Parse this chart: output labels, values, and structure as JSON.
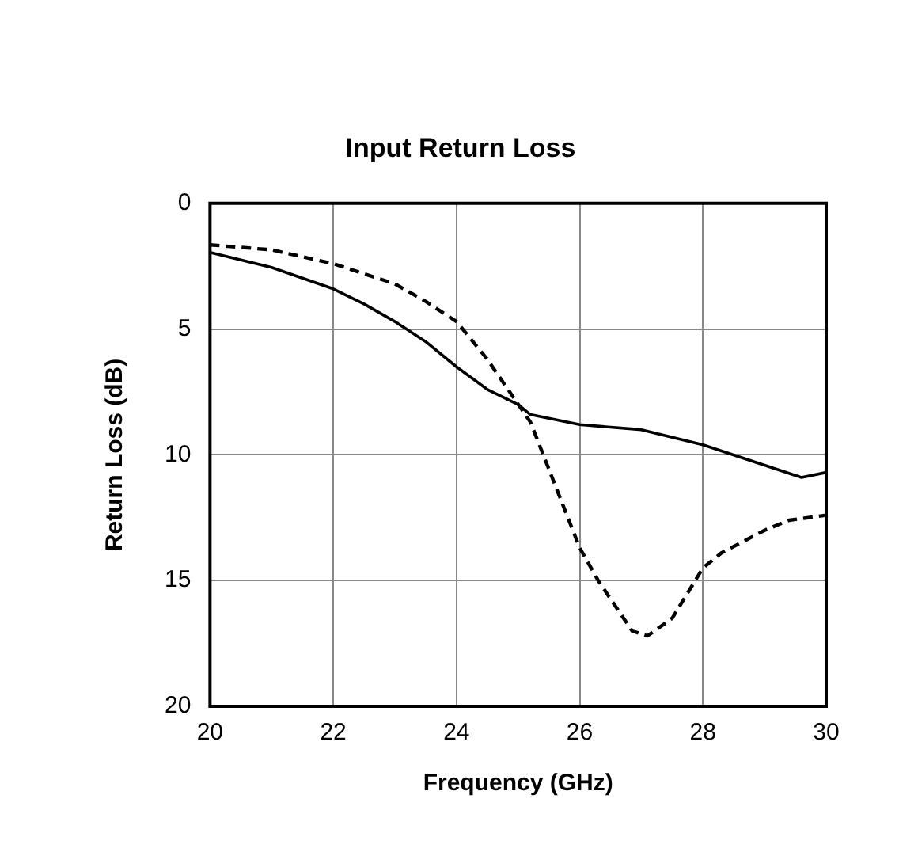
{
  "chart_data": {
    "type": "line",
    "title": "Input Return Loss",
    "xlabel": "Frequency (GHz)",
    "ylabel": "Return Loss (dB)",
    "xlim": [
      20,
      30
    ],
    "xticks": [
      20,
      22,
      24,
      26,
      28,
      30
    ],
    "ylim": [
      20,
      0
    ],
    "yticks": [
      0,
      5,
      10,
      15,
      20
    ],
    "grid": true,
    "legend": false,
    "marker": "none",
    "series": [
      {
        "color": "#000000",
        "line_style": "solid",
        "x": [
          20,
          21,
          22,
          22.5,
          23,
          23.5,
          24,
          24.5,
          25,
          25.2,
          26,
          27,
          28,
          29.6,
          30
        ],
        "values": [
          1.95,
          2.55,
          3.4,
          4.0,
          4.7,
          5.5,
          6.5,
          7.4,
          8.0,
          8.4,
          8.8,
          9.0,
          9.6,
          10.9,
          10.7
        ]
      },
      {
        "color": "#000000",
        "line_style": "dashed",
        "x": [
          20,
          21,
          22,
          23,
          23.5,
          24,
          24.5,
          25.2,
          26,
          26.3,
          26.85,
          27.1,
          27.5,
          28,
          28.3,
          29,
          29.4,
          30
        ],
        "values": [
          1.65,
          1.85,
          2.4,
          3.2,
          3.9,
          4.7,
          6.2,
          8.7,
          13.7,
          15.0,
          17.0,
          17.2,
          16.5,
          14.5,
          13.9,
          13.0,
          12.6,
          12.4
        ]
      }
    ]
  }
}
